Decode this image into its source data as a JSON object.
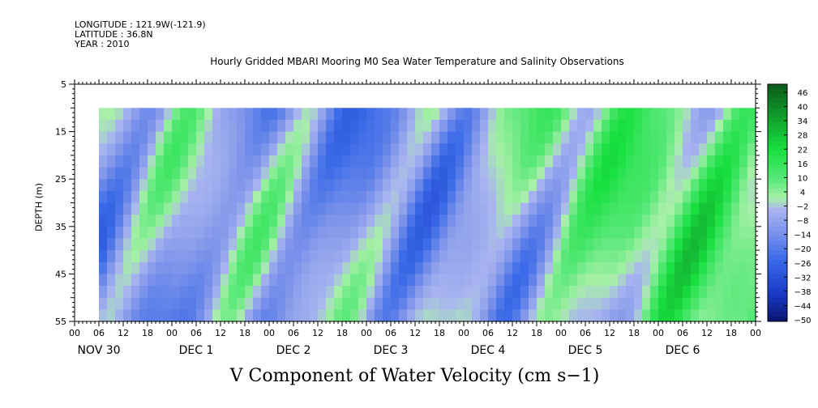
{
  "header": {
    "longitude": "LONGITUDE : 121.9W(-121.9)",
    "latitude": "LATITUDE : 36.8N",
    "year": "YEAR : 2010"
  },
  "chart_data": {
    "type": "heatmap",
    "title": "Hourly Gridded MBARI Mooring M0 Sea Water Temperature and Salinity Observations",
    "ylabel": "DEPTH (m)",
    "xlabel": "",
    "caption": "V Component of Water Velocity (cm s−1)",
    "y_axis": {
      "range": [
        5,
        55
      ],
      "inverted": true,
      "ticks": [
        5,
        15,
        25,
        35,
        45,
        55
      ]
    },
    "x_axis": {
      "hour_ticks": [
        "00",
        "06",
        "12",
        "18",
        "00",
        "06",
        "12",
        "18",
        "00",
        "06",
        "12",
        "18",
        "00",
        "06",
        "12",
        "18",
        "00",
        "06",
        "12",
        "18",
        "00",
        "06",
        "12",
        "18",
        "00",
        "06",
        "12",
        "18",
        "00"
      ],
      "day_labels": [
        "NOV 30",
        "DEC  1",
        "DEC  2",
        "DEC  3",
        "DEC  4",
        "DEC  5",
        "DEC  6"
      ],
      "data_start_hour": 6,
      "data_depth_range": [
        10,
        55
      ]
    },
    "colorbar": {
      "labels": [
        "46",
        "40",
        "34",
        "28",
        "22",
        "16",
        "10",
        "4",
        "−2",
        "−8",
        "−14",
        "−20",
        "−26",
        "−32",
        "−38",
        "−44",
        "−50"
      ],
      "range": [
        -50,
        50
      ]
    },
    "day_means": [
      -10,
      -6,
      -9,
      -11,
      -6,
      2,
      8
    ],
    "colors": {
      "strong_neg": "#0a1470",
      "neg": "#3a6ae8",
      "weak_neg": "#a8b4f0",
      "weak_pos": "#a8f0a8",
      "pos": "#18e040",
      "strong_pos": "#0a5a1a"
    }
  }
}
